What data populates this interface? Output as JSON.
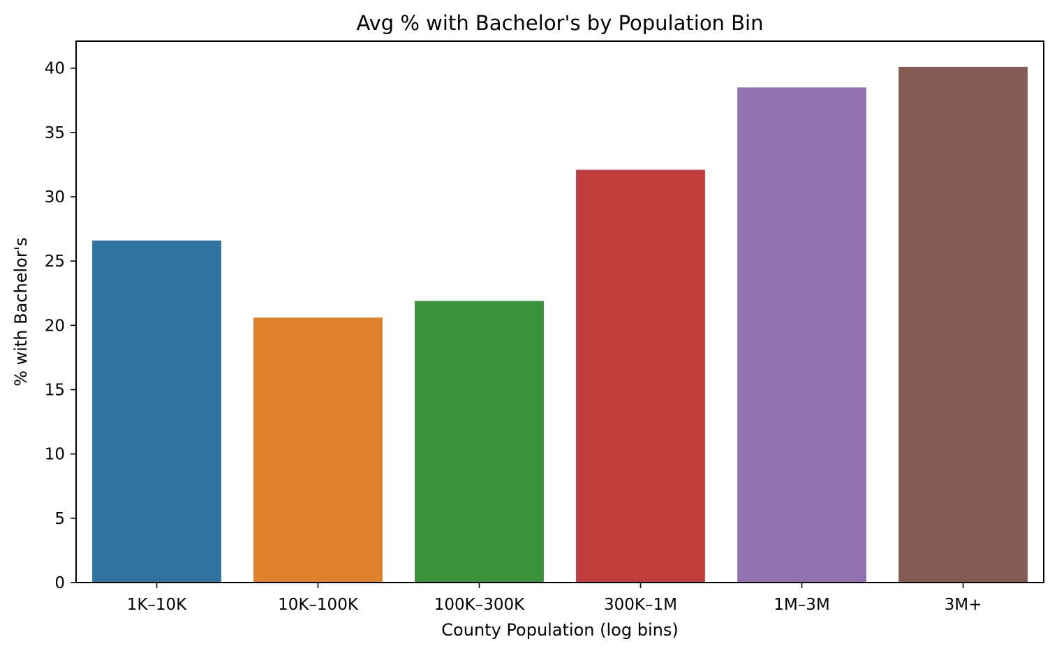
{
  "chart_data": {
    "type": "bar",
    "title": "Avg % with Bachelor's by Population Bin",
    "xlabel": "County Population (log bins)",
    "ylabel": "% with Bachelor's",
    "categories": [
      "1K–10K",
      "10K–100K",
      "100K–300K",
      "300K–1M",
      "1M–3M",
      "3M+"
    ],
    "values": [
      26.6,
      20.6,
      21.9,
      32.1,
      38.5,
      40.1
    ],
    "colors": [
      "#3274a1",
      "#e1812c",
      "#3a923a",
      "#c03d3e",
      "#9372b2",
      "#845b53"
    ],
    "ylim": [
      0,
      42.1
    ],
    "yticks": [
      0,
      5,
      10,
      15,
      20,
      25,
      30,
      35,
      40
    ],
    "grid": false,
    "legend": "none"
  }
}
